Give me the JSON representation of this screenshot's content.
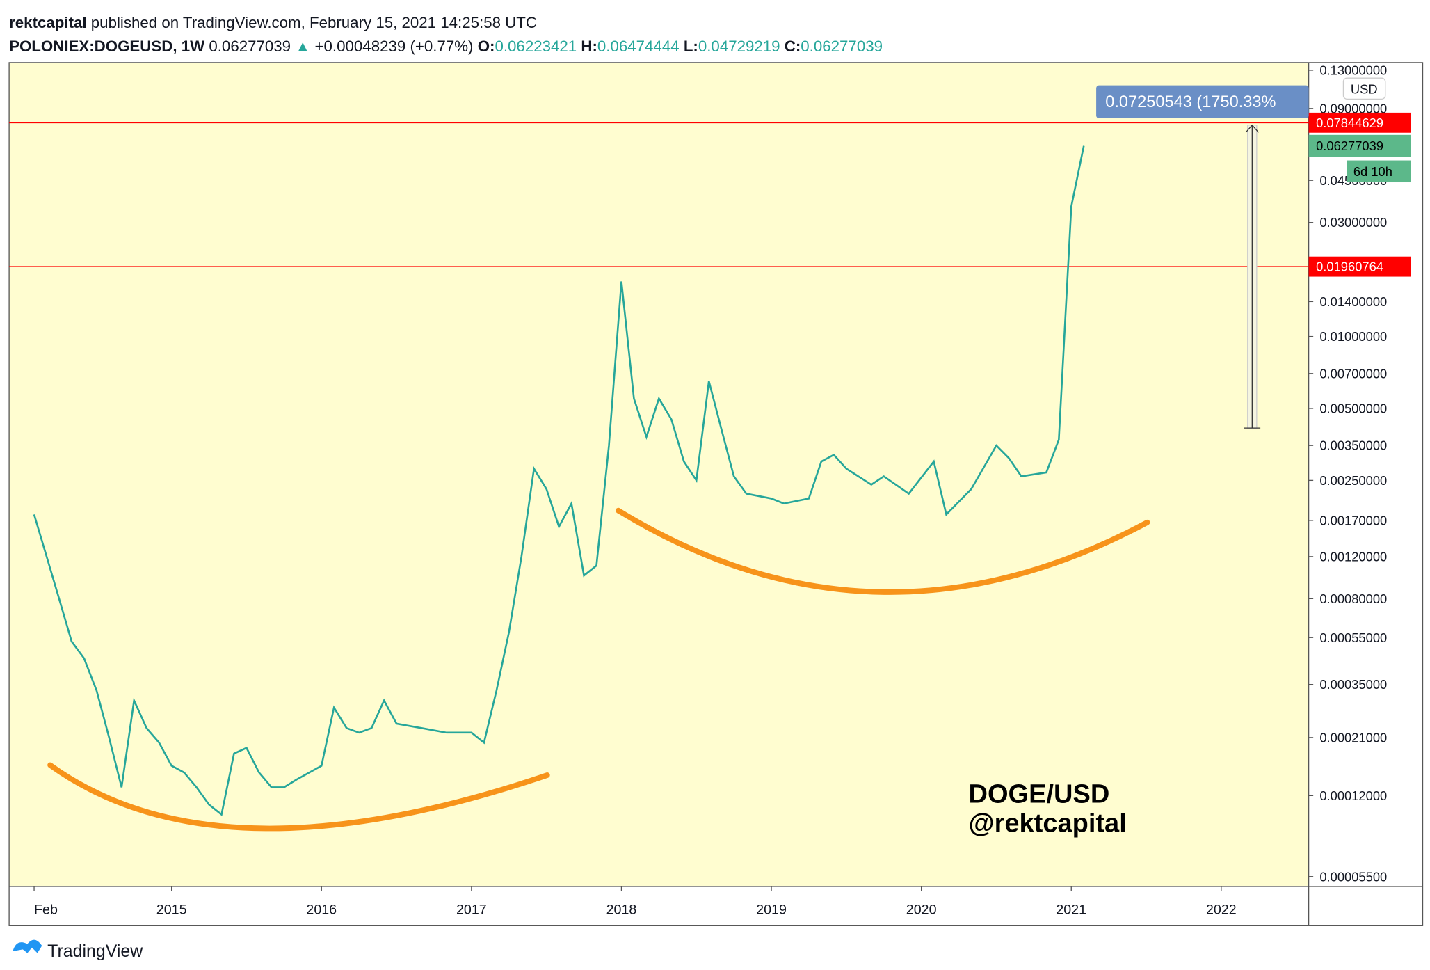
{
  "header": {
    "author": "rektcapital",
    "published": "published on TradingView.com, February 15, 2021 14:25:58 UTC"
  },
  "legend": {
    "symbol": "POLONIEX:DOGEUSD, 1W",
    "last": "0.06277039",
    "change": "+0.00048239 (+0.77%)",
    "open_label": "O:",
    "open": "0.06223421",
    "high_label": "H:",
    "high": "0.06474444",
    "low_label": "L:",
    "low": "0.04729219",
    "close_label": "C:",
    "close": "0.06277039"
  },
  "chart_data": {
    "type": "line",
    "color": "#26a69a",
    "log_scale": true,
    "grid": false,
    "x": [
      "2014-02",
      "2014-03",
      "2014-04",
      "2014-05",
      "2014-06",
      "2014-07",
      "2014-08",
      "2014-09",
      "2014-10",
      "2014-11",
      "2014-12",
      "2015-01",
      "2015-02",
      "2015-03",
      "2015-04",
      "2015-05",
      "2015-06",
      "2015-07",
      "2015-08",
      "2015-09",
      "2015-10",
      "2015-11",
      "2016-01",
      "2016-02",
      "2016-03",
      "2016-04",
      "2016-05",
      "2016-06",
      "2016-07",
      "2016-09",
      "2016-11",
      "2017-01",
      "2017-02",
      "2017-03",
      "2017-04",
      "2017-05",
      "2017-06",
      "2017-07",
      "2017-08",
      "2017-09",
      "2017-10",
      "2017-11",
      "2017-12",
      "2018-01",
      "2018-02",
      "2018-03",
      "2018-04",
      "2018-05",
      "2018-06",
      "2018-07",
      "2018-08",
      "2018-09",
      "2018-10",
      "2018-11",
      "2019-01",
      "2019-02",
      "2019-04",
      "2019-05",
      "2019-06",
      "2019-07",
      "2019-09",
      "2019-10",
      "2019-12",
      "2020-02",
      "2020-03",
      "2020-05",
      "2020-07",
      "2020-08",
      "2020-09",
      "2020-11",
      "2020-12",
      "2021-01",
      "2021-02"
    ],
    "values": [
      0.0018,
      0.0012,
      0.0008,
      0.00053,
      0.00045,
      0.00033,
      0.00021,
      0.00013,
      0.0003,
      0.00023,
      0.0002,
      0.00016,
      0.00015,
      0.00013,
      0.00011,
      0.0001,
      0.00018,
      0.00019,
      0.00015,
      0.00013,
      0.00013,
      0.00014,
      0.00016,
      0.00028,
      0.00023,
      0.00022,
      0.00023,
      0.0003,
      0.00024,
      0.00023,
      0.00022,
      0.00022,
      0.0002,
      0.00033,
      0.00058,
      0.0012,
      0.0028,
      0.0023,
      0.0016,
      0.002,
      0.001,
      0.0011,
      0.0035,
      0.017,
      0.0055,
      0.0038,
      0.0055,
      0.0045,
      0.003,
      0.0025,
      0.0065,
      0.0041,
      0.0026,
      0.0022,
      0.0021,
      0.002,
      0.0021,
      0.003,
      0.0032,
      0.0028,
      0.0024,
      0.0026,
      0.0022,
      0.003,
      0.0018,
      0.0023,
      0.0035,
      0.0031,
      0.0026,
      0.0027,
      0.0037,
      0.035,
      0.06277039
    ],
    "xlim": [
      "2013-12",
      "2022-08"
    ],
    "xticks": [
      {
        "value": "2014-02",
        "label": "Feb"
      },
      {
        "value": "2015-01",
        "label": "2015"
      },
      {
        "value": "2016-01",
        "label": "2016"
      },
      {
        "value": "2017-01",
        "label": "2017"
      },
      {
        "value": "2018-01",
        "label": "2018"
      },
      {
        "value": "2019-01",
        "label": "2019"
      },
      {
        "value": "2020-01",
        "label": "2020"
      },
      {
        "value": "2021-01",
        "label": "2021"
      },
      {
        "value": "2022-01",
        "label": "2022"
      }
    ],
    "ylim": [
      5e-05,
      0.14
    ],
    "yticks": [
      {
        "value": 0.13,
        "label": "0.13000000"
      },
      {
        "value": 0.09,
        "label": "0.09000000"
      },
      {
        "value": 0.045,
        "label": "0.04500000"
      },
      {
        "value": 0.03,
        "label": "0.03000000"
      },
      {
        "value": 0.014,
        "label": "0.01400000"
      },
      {
        "value": 0.01,
        "label": "0.01000000"
      },
      {
        "value": 0.007,
        "label": "0.00700000"
      },
      {
        "value": 0.005,
        "label": "0.00500000"
      },
      {
        "value": 0.0035,
        "label": "0.00350000"
      },
      {
        "value": 0.0025,
        "label": "0.00250000"
      },
      {
        "value": 0.0017,
        "label": "0.00170000"
      },
      {
        "value": 0.0012,
        "label": "0.00120000"
      },
      {
        "value": 0.0008,
        "label": "0.00080000"
      },
      {
        "value": 0.00055,
        "label": "0.00055000"
      },
      {
        "value": 0.00035,
        "label": "0.00035000"
      },
      {
        "value": 0.00021,
        "label": "0.00021000"
      },
      {
        "value": 0.00012,
        "label": "0.00012000"
      },
      {
        "value": 5.5e-05,
        "label": "0.00005500"
      }
    ],
    "horizontal_lines": [
      {
        "value": 0.07844629,
        "label": "0.07844629",
        "color": "#ff0000"
      },
      {
        "value": 0.01960764,
        "label": "0.01960764",
        "color": "#ff0000"
      }
    ],
    "last_price": {
      "value": 0.06277039,
      "label": "0.06277039",
      "color": "#5cb88a"
    },
    "countdown": "6d 10h",
    "currency": "USD",
    "measure": {
      "from": 0.00414,
      "to": 0.07665,
      "label": "0.07250543 (1750.33%"
    },
    "annotations": [
      "DOGE/USD",
      "@rektcapital"
    ]
  },
  "footer": {
    "brand": "TradingView"
  }
}
